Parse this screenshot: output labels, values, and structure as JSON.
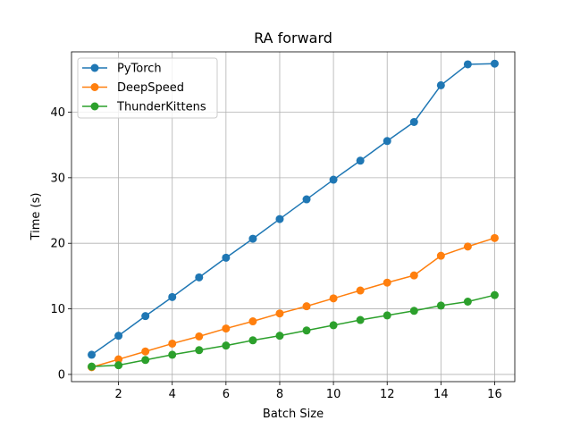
{
  "chart_data": {
    "type": "line",
    "title": "RA forward",
    "xlabel": "Batch Size",
    "ylabel": "Time (s)",
    "x": [
      1,
      2,
      3,
      4,
      5,
      6,
      7,
      8,
      9,
      10,
      11,
      12,
      13,
      14,
      15,
      16
    ],
    "xlim": [
      0.25,
      16.75
    ],
    "ylim": [
      -1.1,
      49.2
    ],
    "xticks": [
      2,
      4,
      6,
      8,
      10,
      12,
      14,
      16
    ],
    "yticks": [
      0,
      10,
      20,
      30,
      40
    ],
    "grid": true,
    "legend": "top-left",
    "series": [
      {
        "name": "PyTorch",
        "color": "#1f77b4",
        "values": [
          3.0,
          5.9,
          8.9,
          11.8,
          14.8,
          17.8,
          20.7,
          23.7,
          26.7,
          29.7,
          32.6,
          35.6,
          38.5,
          44.1,
          47.3,
          47.4
        ]
      },
      {
        "name": "DeepSpeed",
        "color": "#ff7f0e",
        "values": [
          1.1,
          2.3,
          3.5,
          4.7,
          5.8,
          7.0,
          8.1,
          9.3,
          10.4,
          11.6,
          12.8,
          14.0,
          15.1,
          18.1,
          19.5,
          20.8
        ]
      },
      {
        "name": "ThunderKittens",
        "color": "#2ca02c",
        "values": [
          1.2,
          1.4,
          2.2,
          3.0,
          3.7,
          4.4,
          5.2,
          5.9,
          6.7,
          7.5,
          8.3,
          9.0,
          9.7,
          10.5,
          11.1,
          12.1
        ]
      }
    ]
  }
}
